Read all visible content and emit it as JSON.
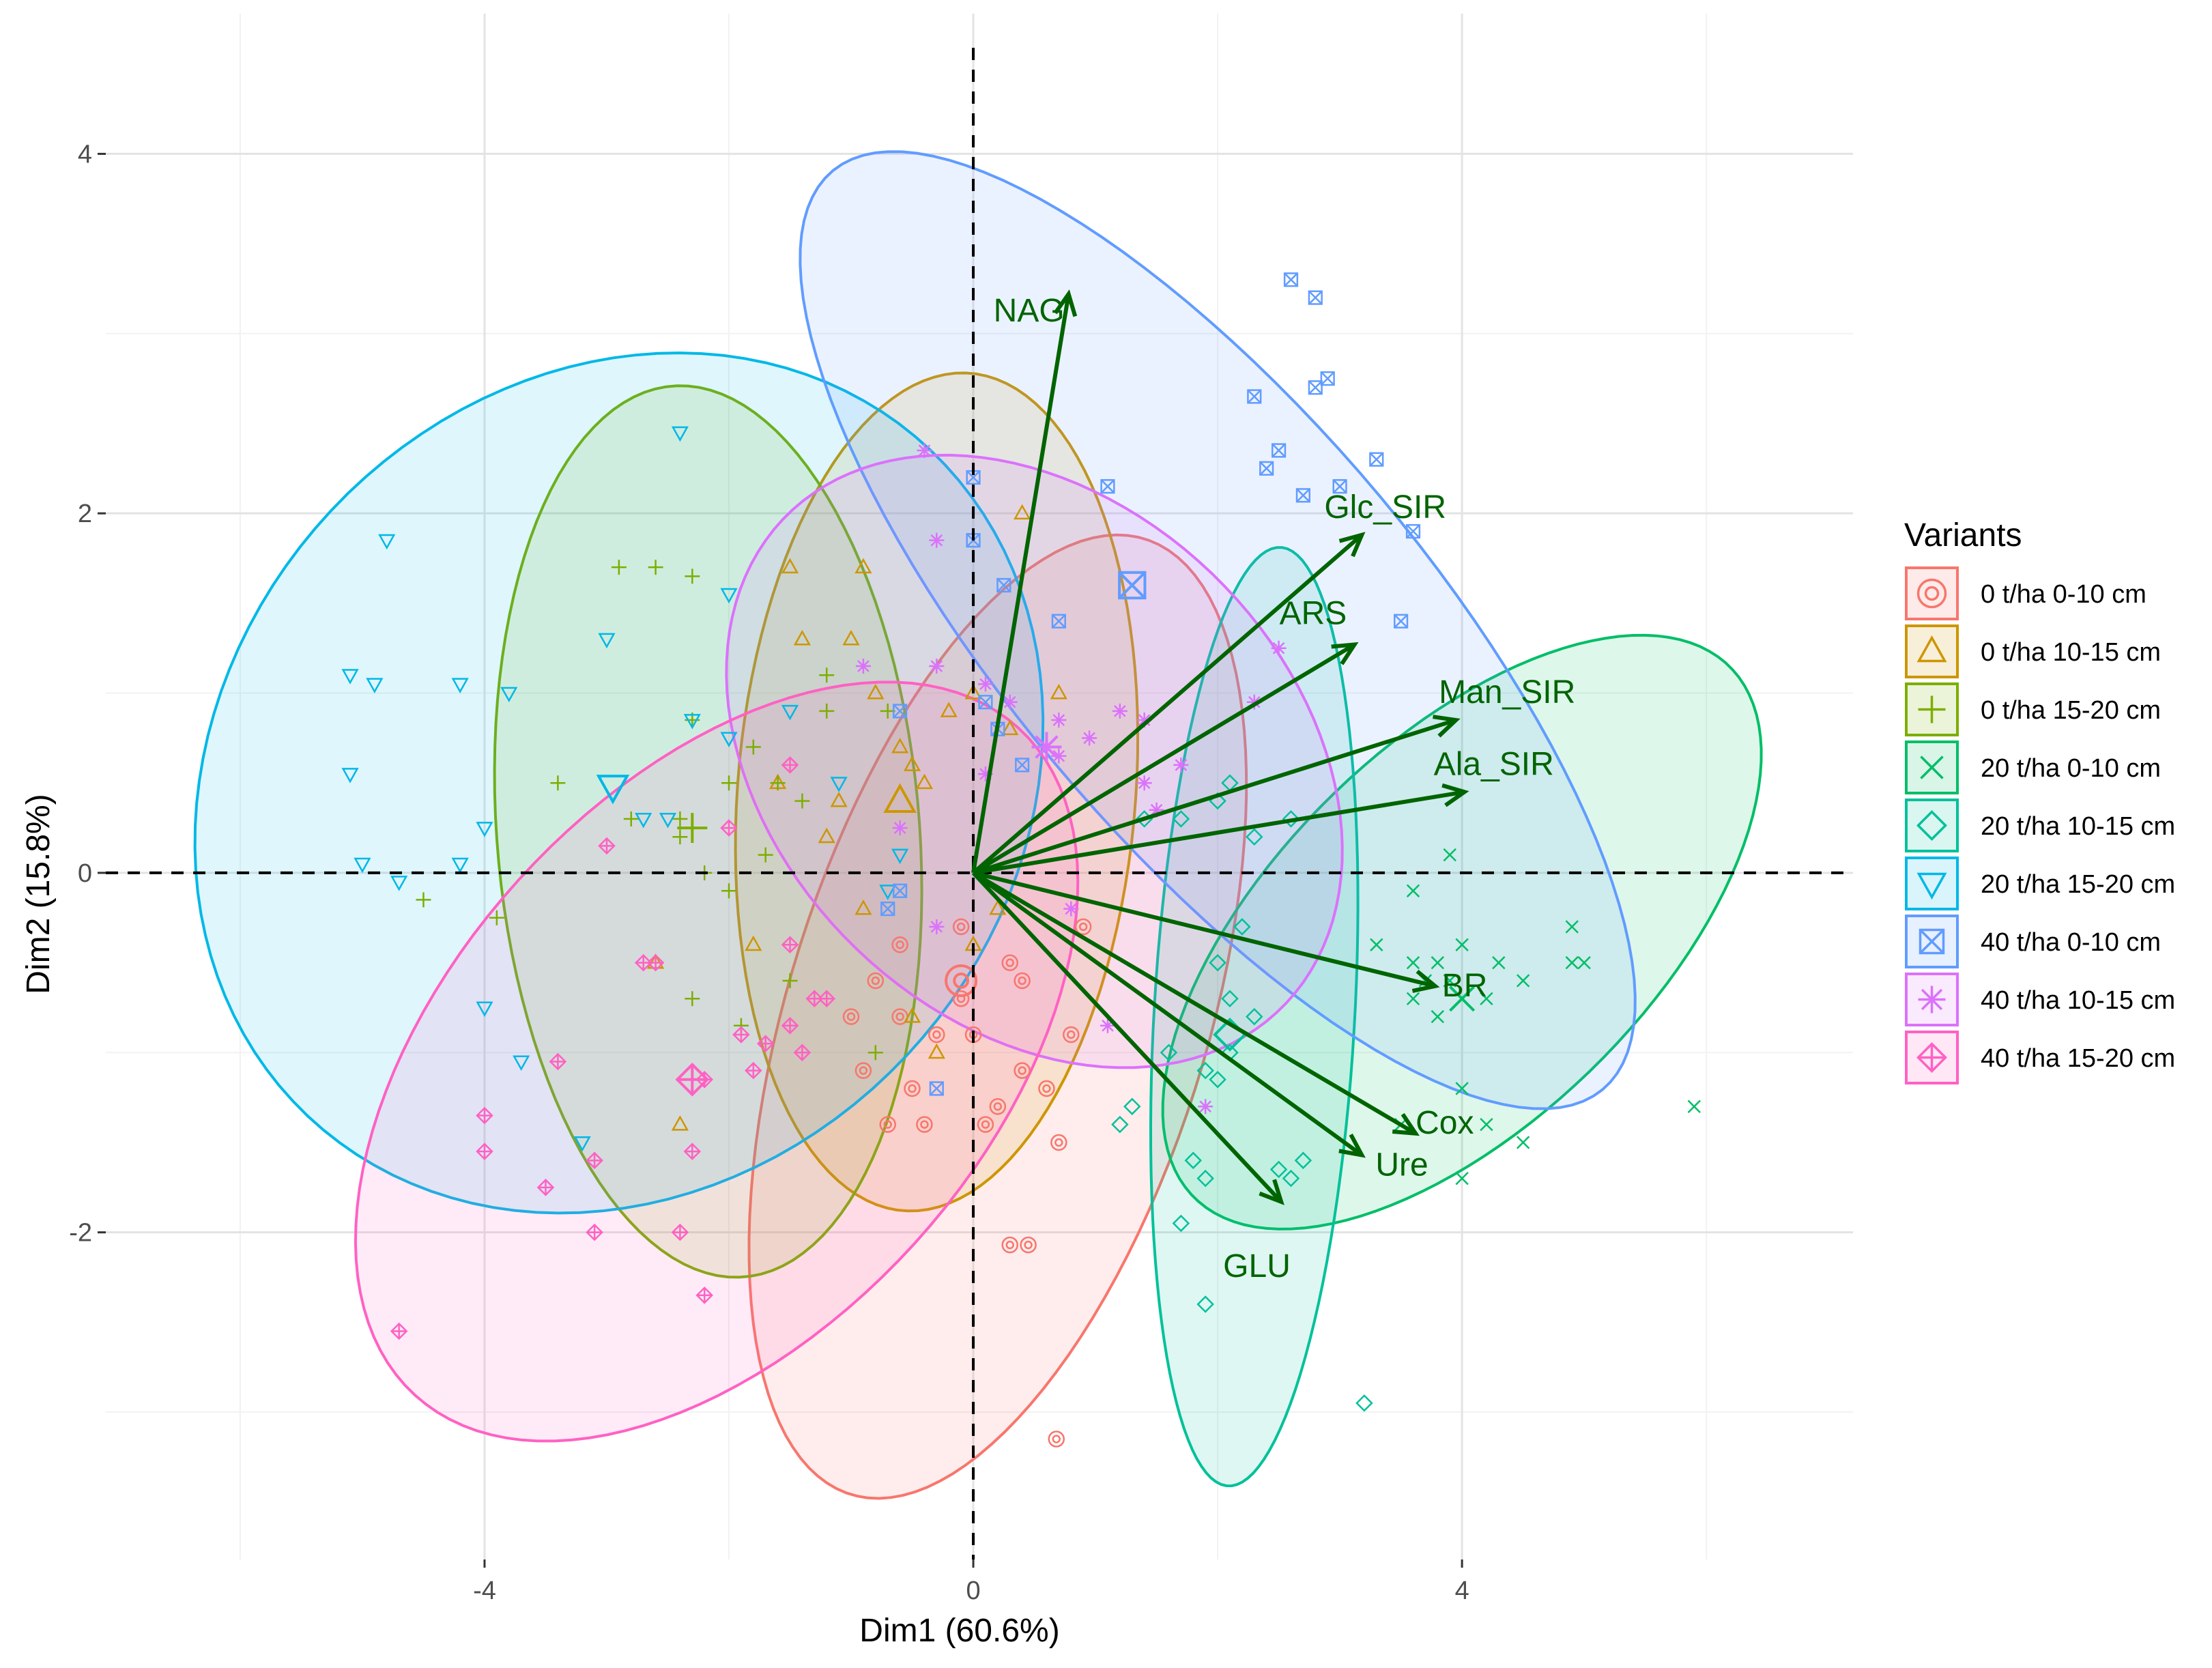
{
  "chart_data": {
    "type": "scatter",
    "subtype": "pca-biplot",
    "title": "",
    "xlabel": "Dim1 (60.6%)",
    "ylabel": "Dim2 (15.8%)",
    "xlim": [
      -7.1,
      7.2
    ],
    "ylim": [
      -3.82,
      4.78
    ],
    "x_ticks": [
      {
        "value": -4,
        "label": "-4"
      },
      {
        "value": 0,
        "label": "0"
      },
      {
        "value": 4,
        "label": "4"
      }
    ],
    "y_ticks": [
      {
        "value": -2,
        "label": "-2"
      },
      {
        "value": 0,
        "label": "0"
      },
      {
        "value": 2,
        "label": "2"
      },
      {
        "value": 4,
        "label": "4"
      }
    ],
    "grid": true,
    "reference_lines": {
      "x": 0,
      "y": 0,
      "style": "dashed"
    },
    "legend": {
      "title": "Variants",
      "placement": "right"
    },
    "arrow_color": "#006400",
    "variables": [
      {
        "name": "NAG",
        "x": 0.78,
        "y": 3.22
      },
      {
        "name": "Glc_SIR",
        "x": 3.18,
        "y": 1.88
      },
      {
        "name": "ARS",
        "x": 3.12,
        "y": 1.27
      },
      {
        "name": "Man_SIR",
        "x": 3.95,
        "y": 0.85
      },
      {
        "name": "Ala_SIR",
        "x": 4.02,
        "y": 0.45
      },
      {
        "name": "BR",
        "x": 3.78,
        "y": -0.63
      },
      {
        "name": "Cox",
        "x": 3.62,
        "y": -1.45
      },
      {
        "name": "Ure",
        "x": 3.18,
        "y": -1.57
      },
      {
        "name": "GLU",
        "x": 2.52,
        "y": -1.83
      }
    ],
    "series": [
      {
        "name": "0 t/ha 0-10 cm",
        "color": "#F8766D",
        "shape": "circle-dot",
        "centroid": [
          -0.1,
          -0.6
        ],
        "ellipse": {
          "cx": 0.2,
          "cy": -0.8,
          "rx": 2.95,
          "ry": 1.62,
          "angle": 60
        },
        "points": [
          [
            -0.3,
            -0.9
          ],
          [
            -0.1,
            -0.7
          ],
          [
            0.4,
            -1.1
          ],
          [
            -0.6,
            -0.4
          ],
          [
            0.3,
            -0.5
          ],
          [
            0.6,
            -1.2
          ],
          [
            -0.7,
            -1.4
          ],
          [
            0.0,
            -0.9
          ],
          [
            0.4,
            -0.6
          ],
          [
            -0.5,
            -1.2
          ],
          [
            0.8,
            -0.9
          ],
          [
            0.3,
            -2.07
          ],
          [
            0.45,
            -2.07
          ],
          [
            0.68,
            -3.15
          ],
          [
            -0.8,
            -0.6
          ],
          [
            -0.4,
            -1.4
          ],
          [
            0.2,
            -1.3
          ],
          [
            -0.1,
            -0.3
          ],
          [
            -1.0,
            -0.8
          ],
          [
            0.9,
            -0.3
          ],
          [
            0.7,
            -1.5
          ],
          [
            -0.6,
            -0.8
          ],
          [
            -0.9,
            -1.1
          ],
          [
            0.1,
            -1.4
          ]
        ]
      },
      {
        "name": "0 t/ha 10-15 cm",
        "color": "#CD9600",
        "shape": "triangle",
        "centroid": [
          -0.6,
          0.4
        ],
        "ellipse": {
          "cx": -0.3,
          "cy": 0.45,
          "rx": 2.35,
          "ry": 1.62,
          "angle": 80
        },
        "points": [
          [
            -1.5,
            1.7
          ],
          [
            -0.9,
            1.7
          ],
          [
            -1.0,
            1.3
          ],
          [
            -0.5,
            0.6
          ],
          [
            0.0,
            1.0
          ],
          [
            0.4,
            2.0
          ],
          [
            -0.2,
            0.9
          ],
          [
            0.3,
            0.8
          ],
          [
            -1.2,
            0.2
          ],
          [
            0.7,
            1.0
          ],
          [
            -0.4,
            0.5
          ],
          [
            -0.8,
            1.0
          ],
          [
            -1.4,
            1.3
          ],
          [
            -2.4,
            -1.4
          ],
          [
            -2.6,
            -0.5
          ],
          [
            0.0,
            -0.4
          ],
          [
            -0.3,
            -1.0
          ],
          [
            -1.8,
            -0.4
          ],
          [
            -0.5,
            -0.8
          ],
          [
            -1.6,
            0.5
          ],
          [
            -0.9,
            -0.2
          ],
          [
            0.2,
            -0.2
          ],
          [
            -0.6,
            0.7
          ],
          [
            -1.1,
            0.4
          ]
        ]
      },
      {
        "name": "0 t/ha 15-20 cm",
        "color": "#7CAE00",
        "shape": "plus",
        "centroid": [
          -2.3,
          0.25
        ],
        "ellipse": {
          "cx": -2.17,
          "cy": 0.23,
          "rx": 2.5,
          "ry": 1.72,
          "angle": -80
        },
        "points": [
          [
            -2.9,
            1.7
          ],
          [
            -2.6,
            1.7
          ],
          [
            -2.3,
            1.65
          ],
          [
            -3.4,
            0.5
          ],
          [
            -3.9,
            -0.25
          ],
          [
            -4.5,
            -0.15
          ],
          [
            -2.4,
            0.2
          ],
          [
            -2.4,
            0.3
          ],
          [
            -2.0,
            0.5
          ],
          [
            -1.8,
            0.7
          ],
          [
            -2.2,
            0.0
          ],
          [
            -2.0,
            -0.1
          ],
          [
            -1.6,
            0.5
          ],
          [
            -2.3,
            -0.7
          ],
          [
            -1.9,
            -0.85
          ],
          [
            -2.3,
            0.85
          ],
          [
            -1.2,
            0.9
          ],
          [
            -1.2,
            1.1
          ],
          [
            -0.7,
            0.9
          ],
          [
            -1.4,
            0.4
          ],
          [
            -0.8,
            -1.0
          ],
          [
            -1.5,
            -0.6
          ],
          [
            -2.8,
            0.3
          ],
          [
            -1.7,
            0.1
          ]
        ]
      },
      {
        "name": "20 t/ha 0-10 cm",
        "color": "#00BE67",
        "shape": "x",
        "centroid": [
          4.0,
          -0.7
        ],
        "ellipse": {
          "cx": 4.0,
          "cy": -0.33,
          "rx": 2.7,
          "ry": 1.2,
          "angle": 28
        },
        "points": [
          [
            3.6,
            -0.7
          ],
          [
            3.8,
            -0.5
          ],
          [
            4.2,
            -0.7
          ],
          [
            4.5,
            -0.6
          ],
          [
            4.9,
            -0.5
          ],
          [
            5.0,
            -0.5
          ],
          [
            4.9,
            -0.3
          ],
          [
            5.9,
            -1.3
          ],
          [
            4.0,
            -1.2
          ],
          [
            4.2,
            -1.4
          ],
          [
            4.5,
            -1.5
          ],
          [
            4.0,
            -1.7
          ],
          [
            3.6,
            -0.1
          ],
          [
            3.9,
            0.1
          ],
          [
            3.6,
            -0.5
          ],
          [
            3.3,
            -0.4
          ],
          [
            4.0,
            -0.4
          ],
          [
            3.8,
            -0.8
          ],
          [
            3.5,
            -1.4
          ],
          [
            4.3,
            -0.5
          ],
          [
            3.9,
            -0.6
          ],
          [
            3.7,
            -0.6
          ]
        ]
      },
      {
        "name": "20 t/ha 10-15 cm",
        "color": "#00C19A",
        "shape": "diamond",
        "centroid": [
          2.1,
          -0.9
        ],
        "ellipse": {
          "cx": 2.3,
          "cy": -0.8,
          "rx": 2.62,
          "ry": 0.82,
          "angle": 85
        },
        "points": [
          [
            1.4,
            0.3
          ],
          [
            1.7,
            0.3
          ],
          [
            2.0,
            0.4
          ],
          [
            2.1,
            0.5
          ],
          [
            2.3,
            0.2
          ],
          [
            2.6,
            0.3
          ],
          [
            2.0,
            -0.5
          ],
          [
            2.1,
            -0.7
          ],
          [
            2.3,
            -0.8
          ],
          [
            2.1,
            -1.0
          ],
          [
            1.9,
            -1.1
          ],
          [
            2.0,
            -1.15
          ],
          [
            1.6,
            -1.0
          ],
          [
            1.3,
            -1.3
          ],
          [
            1.2,
            -1.4
          ],
          [
            1.8,
            -1.6
          ],
          [
            1.9,
            -1.7
          ],
          [
            2.5,
            -1.65
          ],
          [
            2.6,
            -1.7
          ],
          [
            2.7,
            -1.6
          ],
          [
            1.7,
            -1.95
          ],
          [
            1.9,
            -2.4
          ],
          [
            3.2,
            -2.95
          ],
          [
            2.2,
            -0.3
          ]
        ]
      },
      {
        "name": "20 t/ha 15-20 cm",
        "color": "#00B8E7",
        "shape": "triangle-down",
        "centroid": [
          -2.95,
          0.48
        ],
        "ellipse": {
          "cx": -2.9,
          "cy": 0.5,
          "rx": 3.5,
          "ry": 2.35,
          "angle": 10
        },
        "points": [
          [
            -4.8,
            1.85
          ],
          [
            -2.4,
            2.45
          ],
          [
            -5.1,
            1.1
          ],
          [
            -4.9,
            1.05
          ],
          [
            -4.2,
            1.05
          ],
          [
            -3.8,
            1.0
          ],
          [
            -3.0,
            1.3
          ],
          [
            -5.1,
            0.55
          ],
          [
            -4.0,
            0.25
          ],
          [
            -4.2,
            0.05
          ],
          [
            -5.0,
            0.05
          ],
          [
            -4.7,
            -0.05
          ],
          [
            -4.0,
            -0.75
          ],
          [
            -3.7,
            -1.05
          ],
          [
            -3.2,
            -1.5
          ],
          [
            -2.7,
            0.3
          ],
          [
            -2.5,
            0.3
          ],
          [
            -2.3,
            0.85
          ],
          [
            -2.0,
            0.75
          ],
          [
            -1.5,
            0.9
          ],
          [
            -2.0,
            1.55
          ],
          [
            -1.1,
            0.5
          ],
          [
            -0.6,
            0.1
          ],
          [
            -0.7,
            -0.1
          ]
        ]
      },
      {
        "name": "40 t/ha 0-10 cm",
        "color": "#619CFF",
        "shape": "square-x",
        "centroid": [
          1.3,
          1.6
        ],
        "ellipse": {
          "cx": 2.0,
          "cy": 1.35,
          "rx": 4.1,
          "ry": 1.4,
          "angle": -36
        },
        "points": [
          [
            2.6,
            3.3
          ],
          [
            2.8,
            3.2
          ],
          [
            2.3,
            2.65
          ],
          [
            2.8,
            2.7
          ],
          [
            2.9,
            2.75
          ],
          [
            3.3,
            2.3
          ],
          [
            2.5,
            2.35
          ],
          [
            2.4,
            2.25
          ],
          [
            2.7,
            2.1
          ],
          [
            3.0,
            2.15
          ],
          [
            3.6,
            1.9
          ],
          [
            3.5,
            1.4
          ],
          [
            1.1,
            2.15
          ],
          [
            0.0,
            2.2
          ],
          [
            0.0,
            1.85
          ],
          [
            0.25,
            1.6
          ],
          [
            0.7,
            1.4
          ],
          [
            0.1,
            0.95
          ],
          [
            0.4,
            0.6
          ],
          [
            -0.6,
            0.9
          ],
          [
            0.2,
            0.8
          ],
          [
            -0.6,
            -0.1
          ],
          [
            -0.3,
            -1.2
          ],
          [
            -0.7,
            -0.2
          ]
        ]
      },
      {
        "name": "40 t/ha 10-15 cm",
        "color": "#DB72FB",
        "shape": "asterisk",
        "centroid": [
          0.6,
          0.7
        ],
        "ellipse": {
          "cx": 0.5,
          "cy": 0.62,
          "rx": 2.6,
          "ry": 1.58,
          "angle": -18
        },
        "points": [
          [
            -0.4,
            2.35
          ],
          [
            -0.3,
            1.85
          ],
          [
            -0.9,
            1.15
          ],
          [
            -0.3,
            1.15
          ],
          [
            0.1,
            1.05
          ],
          [
            0.3,
            0.95
          ],
          [
            0.7,
            0.85
          ],
          [
            0.95,
            0.75
          ],
          [
            1.2,
            0.9
          ],
          [
            1.4,
            0.85
          ],
          [
            1.4,
            0.5
          ],
          [
            1.7,
            0.6
          ],
          [
            2.5,
            1.25
          ],
          [
            2.3,
            0.95
          ],
          [
            1.5,
            0.35
          ],
          [
            0.8,
            -0.2
          ],
          [
            1.1,
            -0.85
          ],
          [
            1.9,
            -1.3
          ],
          [
            -0.6,
            0.25
          ],
          [
            -0.3,
            -0.3
          ],
          [
            0.1,
            0.55
          ],
          [
            0.7,
            0.65
          ]
        ]
      },
      {
        "name": "40 t/ha 15-20 cm",
        "color": "#FF61C3",
        "shape": "diamond-plus",
        "centroid": [
          -2.3,
          -1.15
        ],
        "ellipse": {
          "cx": -2.1,
          "cy": -1.05,
          "rx": 3.2,
          "ry": 1.72,
          "angle": 27
        },
        "points": [
          [
            -3.0,
            0.15
          ],
          [
            -2.7,
            -0.5
          ],
          [
            -2.6,
            -0.5
          ],
          [
            -4.0,
            -1.35
          ],
          [
            -4.0,
            -1.55
          ],
          [
            -3.4,
            -1.05
          ],
          [
            -3.1,
            -1.6
          ],
          [
            -3.1,
            -2.0
          ],
          [
            -3.5,
            -1.75
          ],
          [
            -2.4,
            -2.0
          ],
          [
            -2.2,
            -2.35
          ],
          [
            -4.7,
            -2.55
          ],
          [
            -2.3,
            -1.55
          ],
          [
            -1.9,
            -0.9
          ],
          [
            -1.7,
            -0.95
          ],
          [
            -1.4,
            -1.0
          ],
          [
            -1.3,
            -0.7
          ],
          [
            -1.2,
            -0.7
          ],
          [
            -1.8,
            -1.1
          ],
          [
            -1.5,
            -0.4
          ],
          [
            -2.0,
            0.25
          ],
          [
            -1.5,
            0.6
          ],
          [
            -2.2,
            -1.15
          ],
          [
            -1.5,
            -0.85
          ]
        ]
      }
    ]
  }
}
